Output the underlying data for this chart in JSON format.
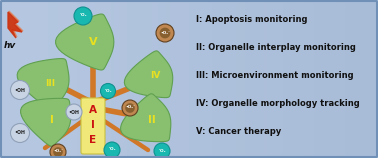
{
  "bg_color_left": "#a8bcd8",
  "bg_color_right": "#c0d0e8",
  "leaf_color": "#88c070",
  "leaf_edge_color": "#60a050",
  "trunk_color": "#f0e878",
  "trunk_edge": "#c8c040",
  "branch_color": "#d07828",
  "aie_red": "#cc1111",
  "roman_color": "#e8e020",
  "text_lines": [
    "I: Apoptosis monitoring",
    "II: Organelle interplay monitoring",
    "III: Microenvironment monitoring",
    "IV: Organelle morphology tracking",
    "V: Cancer therapy"
  ],
  "o2_teal": "#18b8b0",
  "o2_teal_edge": "#109090",
  "o2_brown_outer": "#c08850",
  "o2_brown_inner": "#886030",
  "o2_gray_fill": "#c8d4e4",
  "o2_gray_edge": "#90a0b8",
  "hv_red": "#cc3311",
  "hv_orange": "#ee6622",
  "border_color": "#7090b8"
}
